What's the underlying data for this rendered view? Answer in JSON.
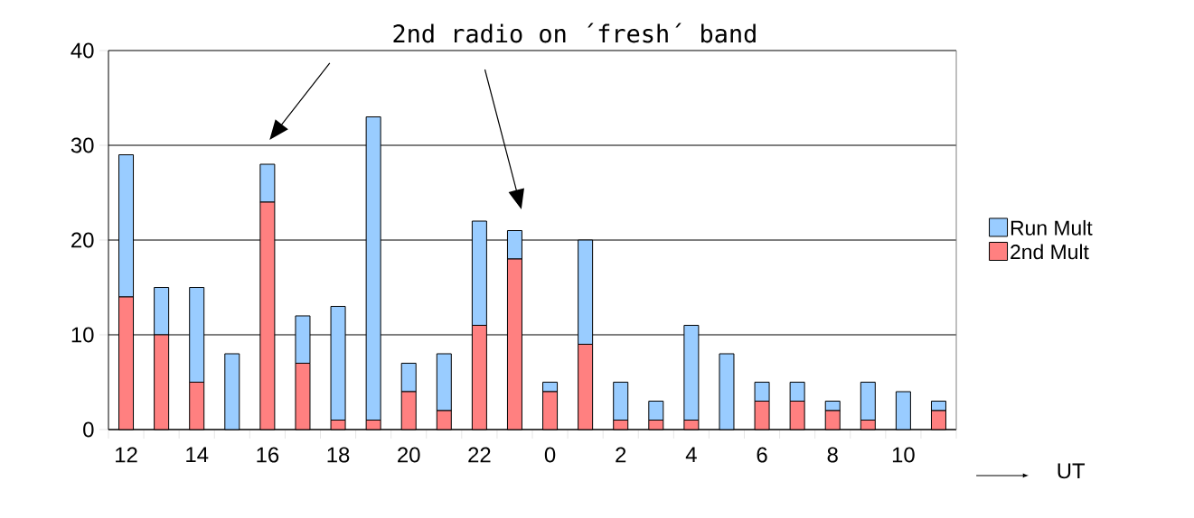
{
  "chart_data": {
    "type": "bar",
    "stacked": true,
    "categories": [
      "12",
      null,
      "14",
      null,
      "16",
      null,
      "18",
      null,
      "20",
      null,
      "22",
      null,
      "0",
      null,
      "2",
      null,
      "4",
      null,
      "6",
      null,
      "8",
      null,
      "10",
      null
    ],
    "series": [
      {
        "name": "2nd Mult",
        "color": "#ff8080",
        "values": [
          14,
          10,
          5,
          0,
          24,
          7,
          1,
          1,
          4,
          2,
          11,
          18,
          4,
          9,
          1,
          1,
          1,
          0,
          3,
          3,
          2,
          1,
          0,
          2
        ]
      },
      {
        "name": "Run Mult",
        "color": "#99ccff",
        "values": [
          15,
          5,
          10,
          8,
          4,
          5,
          12,
          32,
          3,
          6,
          11,
          3,
          1,
          11,
          4,
          2,
          10,
          8,
          2,
          2,
          1,
          4,
          4,
          1
        ]
      }
    ],
    "xlabel": "UT",
    "ylim": [
      0,
      40
    ],
    "yticks": [
      0,
      10,
      20,
      30,
      40
    ],
    "grid": "y",
    "legend": "right",
    "annotations": [
      "2nd radio on ´fresh´ band"
    ]
  }
}
